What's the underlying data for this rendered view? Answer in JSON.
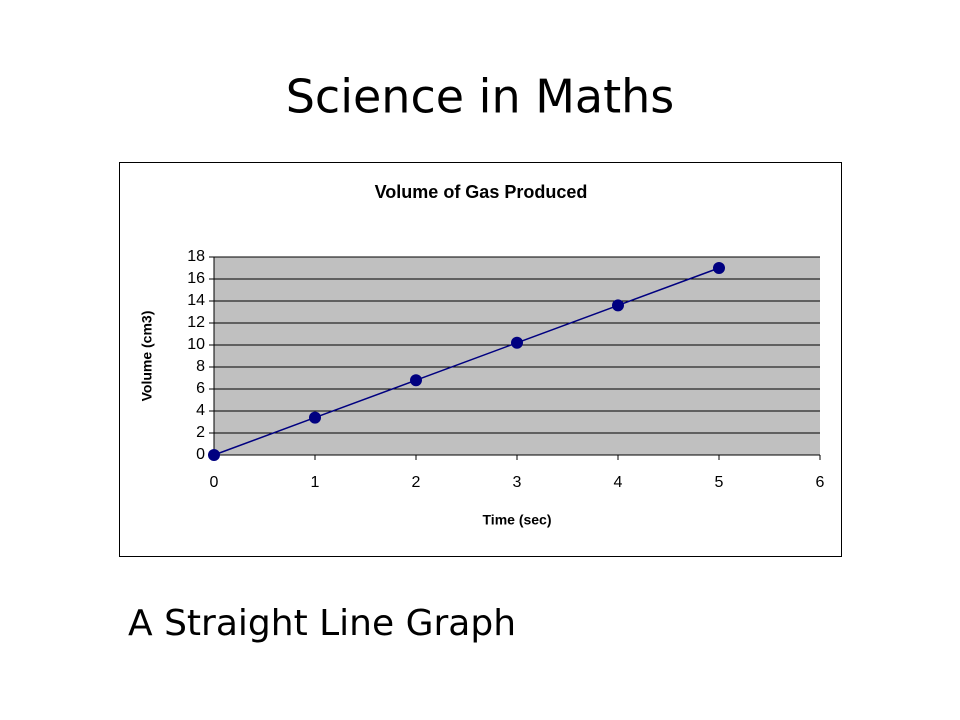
{
  "slide": {
    "title": "Science in Maths",
    "caption": "A Straight Line Graph"
  },
  "chart_data": {
    "type": "line",
    "title": "Volume of Gas Produced",
    "x_label": "Time (sec)",
    "y_label": "Volume (cm3)",
    "x": [
      0,
      1,
      2,
      3,
      4,
      5
    ],
    "values": [
      0,
      3.4,
      6.8,
      10.2,
      13.6,
      17
    ],
    "color": "#000080",
    "markers": true,
    "xlim": [
      0,
      6
    ],
    "xticks": [
      0,
      1,
      2,
      3,
      4,
      5,
      6
    ],
    "ylim": [
      0,
      18
    ],
    "yticks": [
      0,
      2,
      4,
      6,
      8,
      10,
      12,
      14,
      16,
      18
    ],
    "grid": true,
    "plot_background": "#c0c0c0"
  }
}
